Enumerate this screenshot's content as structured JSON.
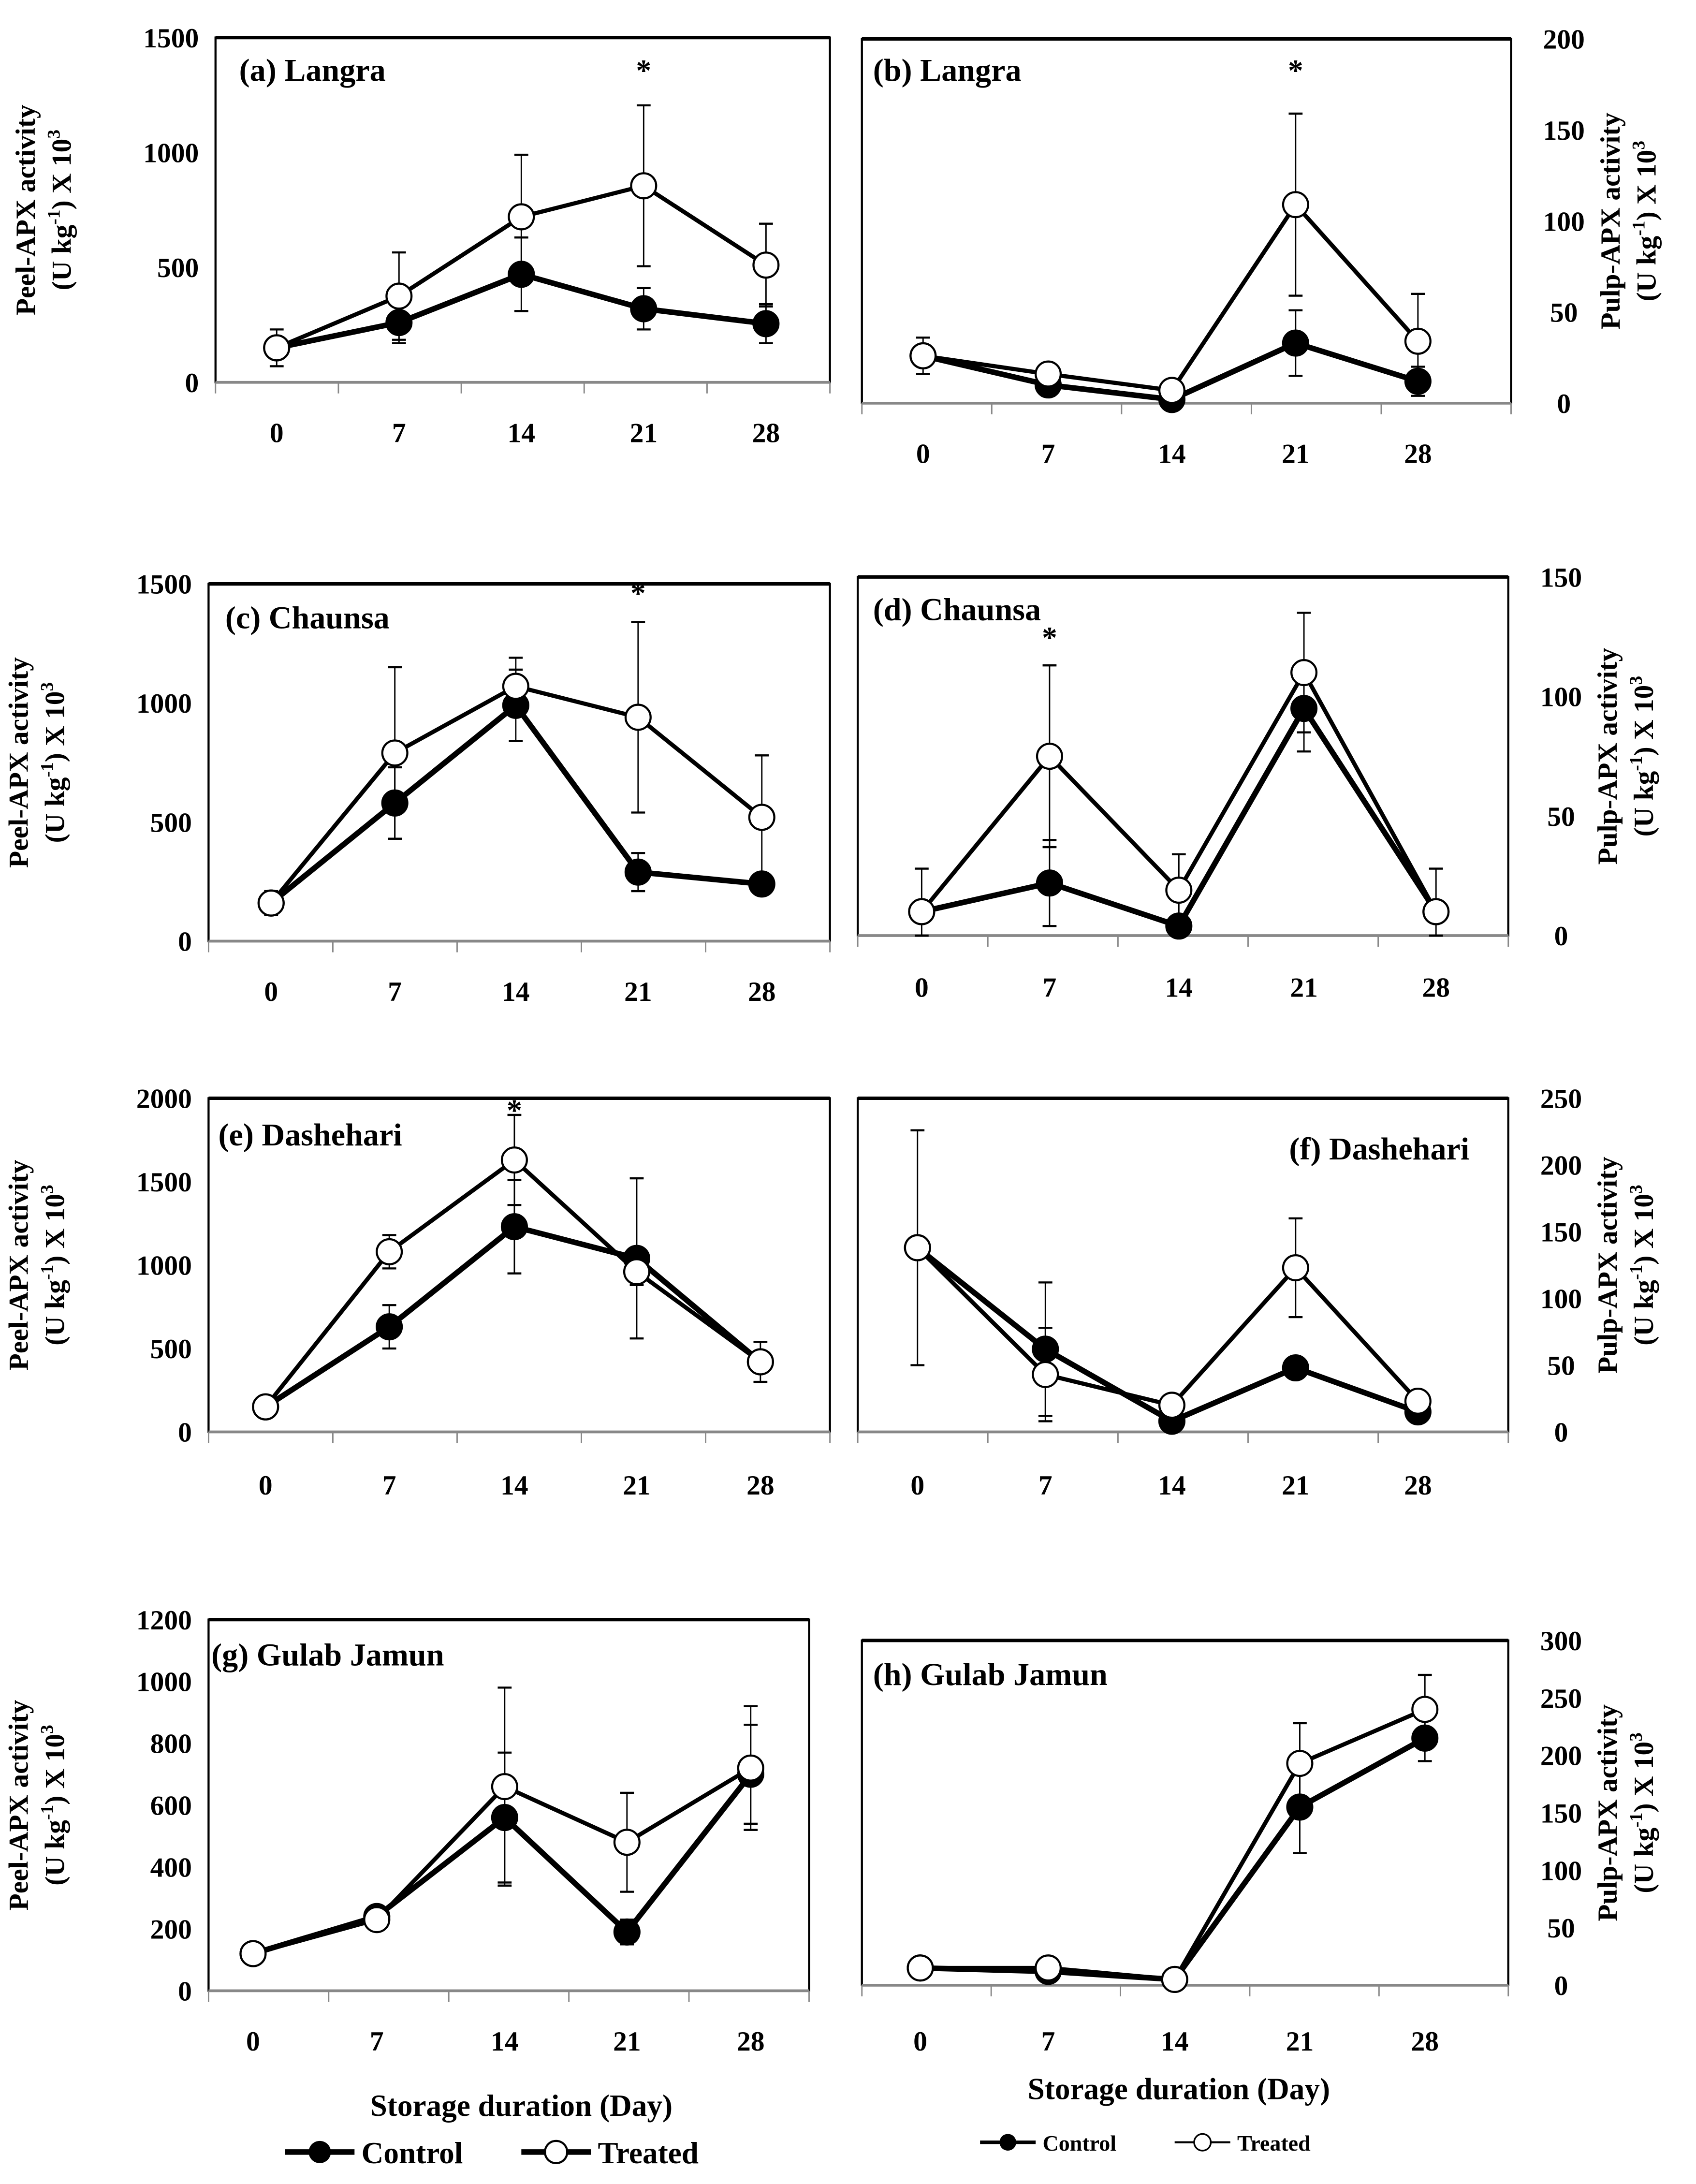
{
  "chart_data": [
    {
      "type": "line",
      "id": "a",
      "title": "(a) Langra",
      "x": [
        0,
        7,
        14,
        21,
        28
      ],
      "ylim": [
        0,
        1500
      ],
      "yticks": [
        0,
        500,
        1000,
        1500
      ],
      "axis": "left",
      "ylabel": [
        "Peel-APX activity",
        "(U kg",
        "-1",
        ") X 10",
        "3"
      ],
      "series": [
        {
          "name": "Control",
          "values": [
            150,
            260,
            470,
            320,
            255
          ],
          "errors": [
            0,
            90,
            160,
            90,
            85
          ]
        },
        {
          "name": "Treated",
          "values": [
            150,
            375,
            720,
            855,
            510
          ],
          "errors": [
            80,
            190,
            270,
            350,
            180
          ]
        }
      ],
      "annotations": [
        {
          "x": 21,
          "text": "*"
        }
      ]
    },
    {
      "type": "line",
      "id": "b",
      "title": "(b) Langra",
      "x": [
        0,
        7,
        14,
        21,
        28
      ],
      "ylim": [
        0,
        200
      ],
      "yticks": [
        0,
        50,
        100,
        150,
        200
      ],
      "axis": "right",
      "ylabel": [
        "Pulp-APX activity",
        "(U kg",
        "-1",
        ") X 10",
        "3"
      ],
      "series": [
        {
          "name": "Control",
          "values": [
            26,
            10,
            2,
            33,
            12
          ],
          "errors": [
            0,
            6,
            0,
            18,
            8
          ]
        },
        {
          "name": "Treated",
          "values": [
            26,
            16,
            7,
            109,
            34
          ],
          "errors": [
            10,
            0,
            0,
            50,
            26
          ]
        }
      ],
      "annotations": [
        {
          "x": 21,
          "text": "*"
        }
      ]
    },
    {
      "type": "line",
      "id": "c",
      "title": "(c) Chaunsa",
      "x": [
        0,
        7,
        14,
        21,
        28
      ],
      "ylim": [
        0,
        1500
      ],
      "yticks": [
        0,
        500,
        1000,
        1500
      ],
      "axis": "left",
      "ylabel": [
        "Peel-APX activity",
        "(U kg",
        "-1",
        ") X 10",
        "3"
      ],
      "series": [
        {
          "name": "Control",
          "values": [
            160,
            580,
            990,
            290,
            240
          ],
          "errors": [
            50,
            150,
            150,
            80,
            0
          ]
        },
        {
          "name": "Treated",
          "values": [
            160,
            790,
            1070,
            940,
            520
          ],
          "errors": [
            0,
            360,
            120,
            400,
            260
          ]
        }
      ],
      "annotations": [
        {
          "x": 21,
          "text": "*"
        }
      ]
    },
    {
      "type": "line",
      "id": "d",
      "title": "(d) Chaunsa",
      "x": [
        0,
        7,
        14,
        21,
        28
      ],
      "ylim": [
        0,
        150
      ],
      "yticks": [
        0,
        50,
        100,
        150
      ],
      "axis": "right",
      "ylabel": [
        "Pulp-APX activity",
        "(U kg",
        "-1",
        ") X 10",
        "3"
      ],
      "series": [
        {
          "name": "Control",
          "values": [
            10,
            22,
            4,
            95,
            10
          ],
          "errors": [
            0,
            18,
            0,
            18,
            0
          ]
        },
        {
          "name": "Treated",
          "values": [
            10,
            75,
            19,
            110,
            10
          ],
          "errors": [
            18,
            38,
            15,
            25,
            18
          ]
        }
      ],
      "annotations": [
        {
          "x": 7,
          "text": "*"
        }
      ]
    },
    {
      "type": "line",
      "id": "e",
      "title": "(e) Dashehari",
      "x": [
        0,
        7,
        14,
        21,
        28
      ],
      "ylim": [
        0,
        2000
      ],
      "yticks": [
        0,
        500,
        1000,
        1500,
        2000
      ],
      "axis": "left",
      "ylabel": [
        "Peel-APX activity",
        "(U kg",
        "-1",
        ") X 10",
        "3"
      ],
      "series": [
        {
          "name": "Control",
          "values": [
            150,
            630,
            1230,
            1040,
            420
          ],
          "errors": [
            0,
            130,
            280,
            480,
            0
          ]
        },
        {
          "name": "Treated",
          "values": [
            150,
            1080,
            1630,
            960,
            420
          ],
          "errors": [
            40,
            100,
            270,
            80,
            120
          ]
        }
      ],
      "annotations": [
        {
          "x": 14,
          "text": "*"
        }
      ]
    },
    {
      "type": "line",
      "id": "f",
      "title": "(f) Dashehari",
      "x": [
        0,
        7,
        14,
        21,
        28
      ],
      "ylim": [
        0,
        250
      ],
      "yticks": [
        0,
        50,
        100,
        150,
        200,
        250
      ],
      "axis": "right",
      "ylabel": [
        "Pulp-APX activity",
        "(U kg",
        "-1",
        ") X 10",
        "3"
      ],
      "series": [
        {
          "name": "Control",
          "values": [
            138,
            62,
            8,
            48,
            15
          ],
          "errors": [
            0,
            50,
            0,
            7,
            0
          ]
        },
        {
          "name": "Treated",
          "values": [
            138,
            43,
            20,
            123,
            23
          ],
          "errors": [
            88,
            35,
            0,
            37,
            0
          ]
        }
      ],
      "annotations": []
    },
    {
      "type": "line",
      "id": "g",
      "title": "(g) Gulab Jamun",
      "x": [
        0,
        7,
        14,
        21,
        28
      ],
      "ylim": [
        0,
        1200
      ],
      "yticks": [
        0,
        200,
        400,
        600,
        800,
        1000,
        1200
      ],
      "axis": "left",
      "ylabel": [
        "Peel-APX activity",
        "(U kg",
        "-1",
        ") X 10",
        "3"
      ],
      "series": [
        {
          "name": "Control",
          "values": [
            120,
            240,
            560,
            190,
            700
          ],
          "errors": [
            0,
            0,
            210,
            40,
            160
          ]
        },
        {
          "name": "Treated",
          "values": [
            120,
            230,
            660,
            480,
            720
          ],
          "errors": [
            0,
            0,
            320,
            160,
            200
          ]
        }
      ],
      "annotations": []
    },
    {
      "type": "line",
      "id": "h",
      "title": "(h) Gulab Jamun",
      "x": [
        0,
        7,
        14,
        21,
        28
      ],
      "ylim": [
        0,
        300
      ],
      "yticks": [
        0,
        50,
        100,
        150,
        200,
        250,
        300
      ],
      "axis": "right",
      "ylabel": [
        "Pulp-APX activity",
        "(U kg",
        "-1",
        ") X 10",
        "3"
      ],
      "series": [
        {
          "name": "Control",
          "values": [
            15,
            12,
            5,
            155,
            215
          ],
          "errors": [
            0,
            0,
            0,
            40,
            20
          ]
        },
        {
          "name": "Treated",
          "values": [
            15,
            15,
            5,
            193,
            240
          ],
          "errors": [
            0,
            0,
            0,
            35,
            30
          ]
        }
      ],
      "annotations": []
    }
  ],
  "xlabel": "Storage duration (Day)",
  "legend": {
    "control": "Control",
    "treated": "Treated"
  }
}
